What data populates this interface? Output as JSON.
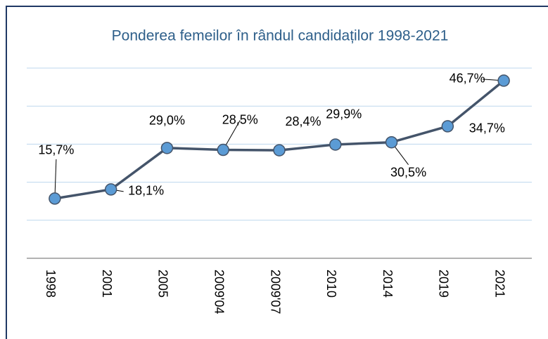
{
  "chart_data": {
    "type": "line",
    "title": "Ponderea femeilor în rândul candidaților 1998-2021",
    "categories": [
      "1998",
      "2001",
      "2005",
      "2009'04",
      "2009'07",
      "2010",
      "2014",
      "2019",
      "2021"
    ],
    "series": [
      {
        "name": "Ponderea femeilor",
        "color": "#44546a",
        "marker_color": "#5b9bd5",
        "values": [
          15.7,
          18.1,
          29.0,
          28.5,
          28.4,
          29.9,
          30.5,
          34.7,
          46.7
        ],
        "value_labels": [
          "15,7%",
          "18,1%",
          "29,0%",
          "28,5%",
          "28,4%",
          "29,9%",
          "30,5%",
          "34,7%",
          "46,7%"
        ]
      }
    ],
    "ylim": [
      0,
      50
    ],
    "yticks": [
      0,
      10,
      20,
      30,
      40,
      50
    ],
    "grid": true
  }
}
